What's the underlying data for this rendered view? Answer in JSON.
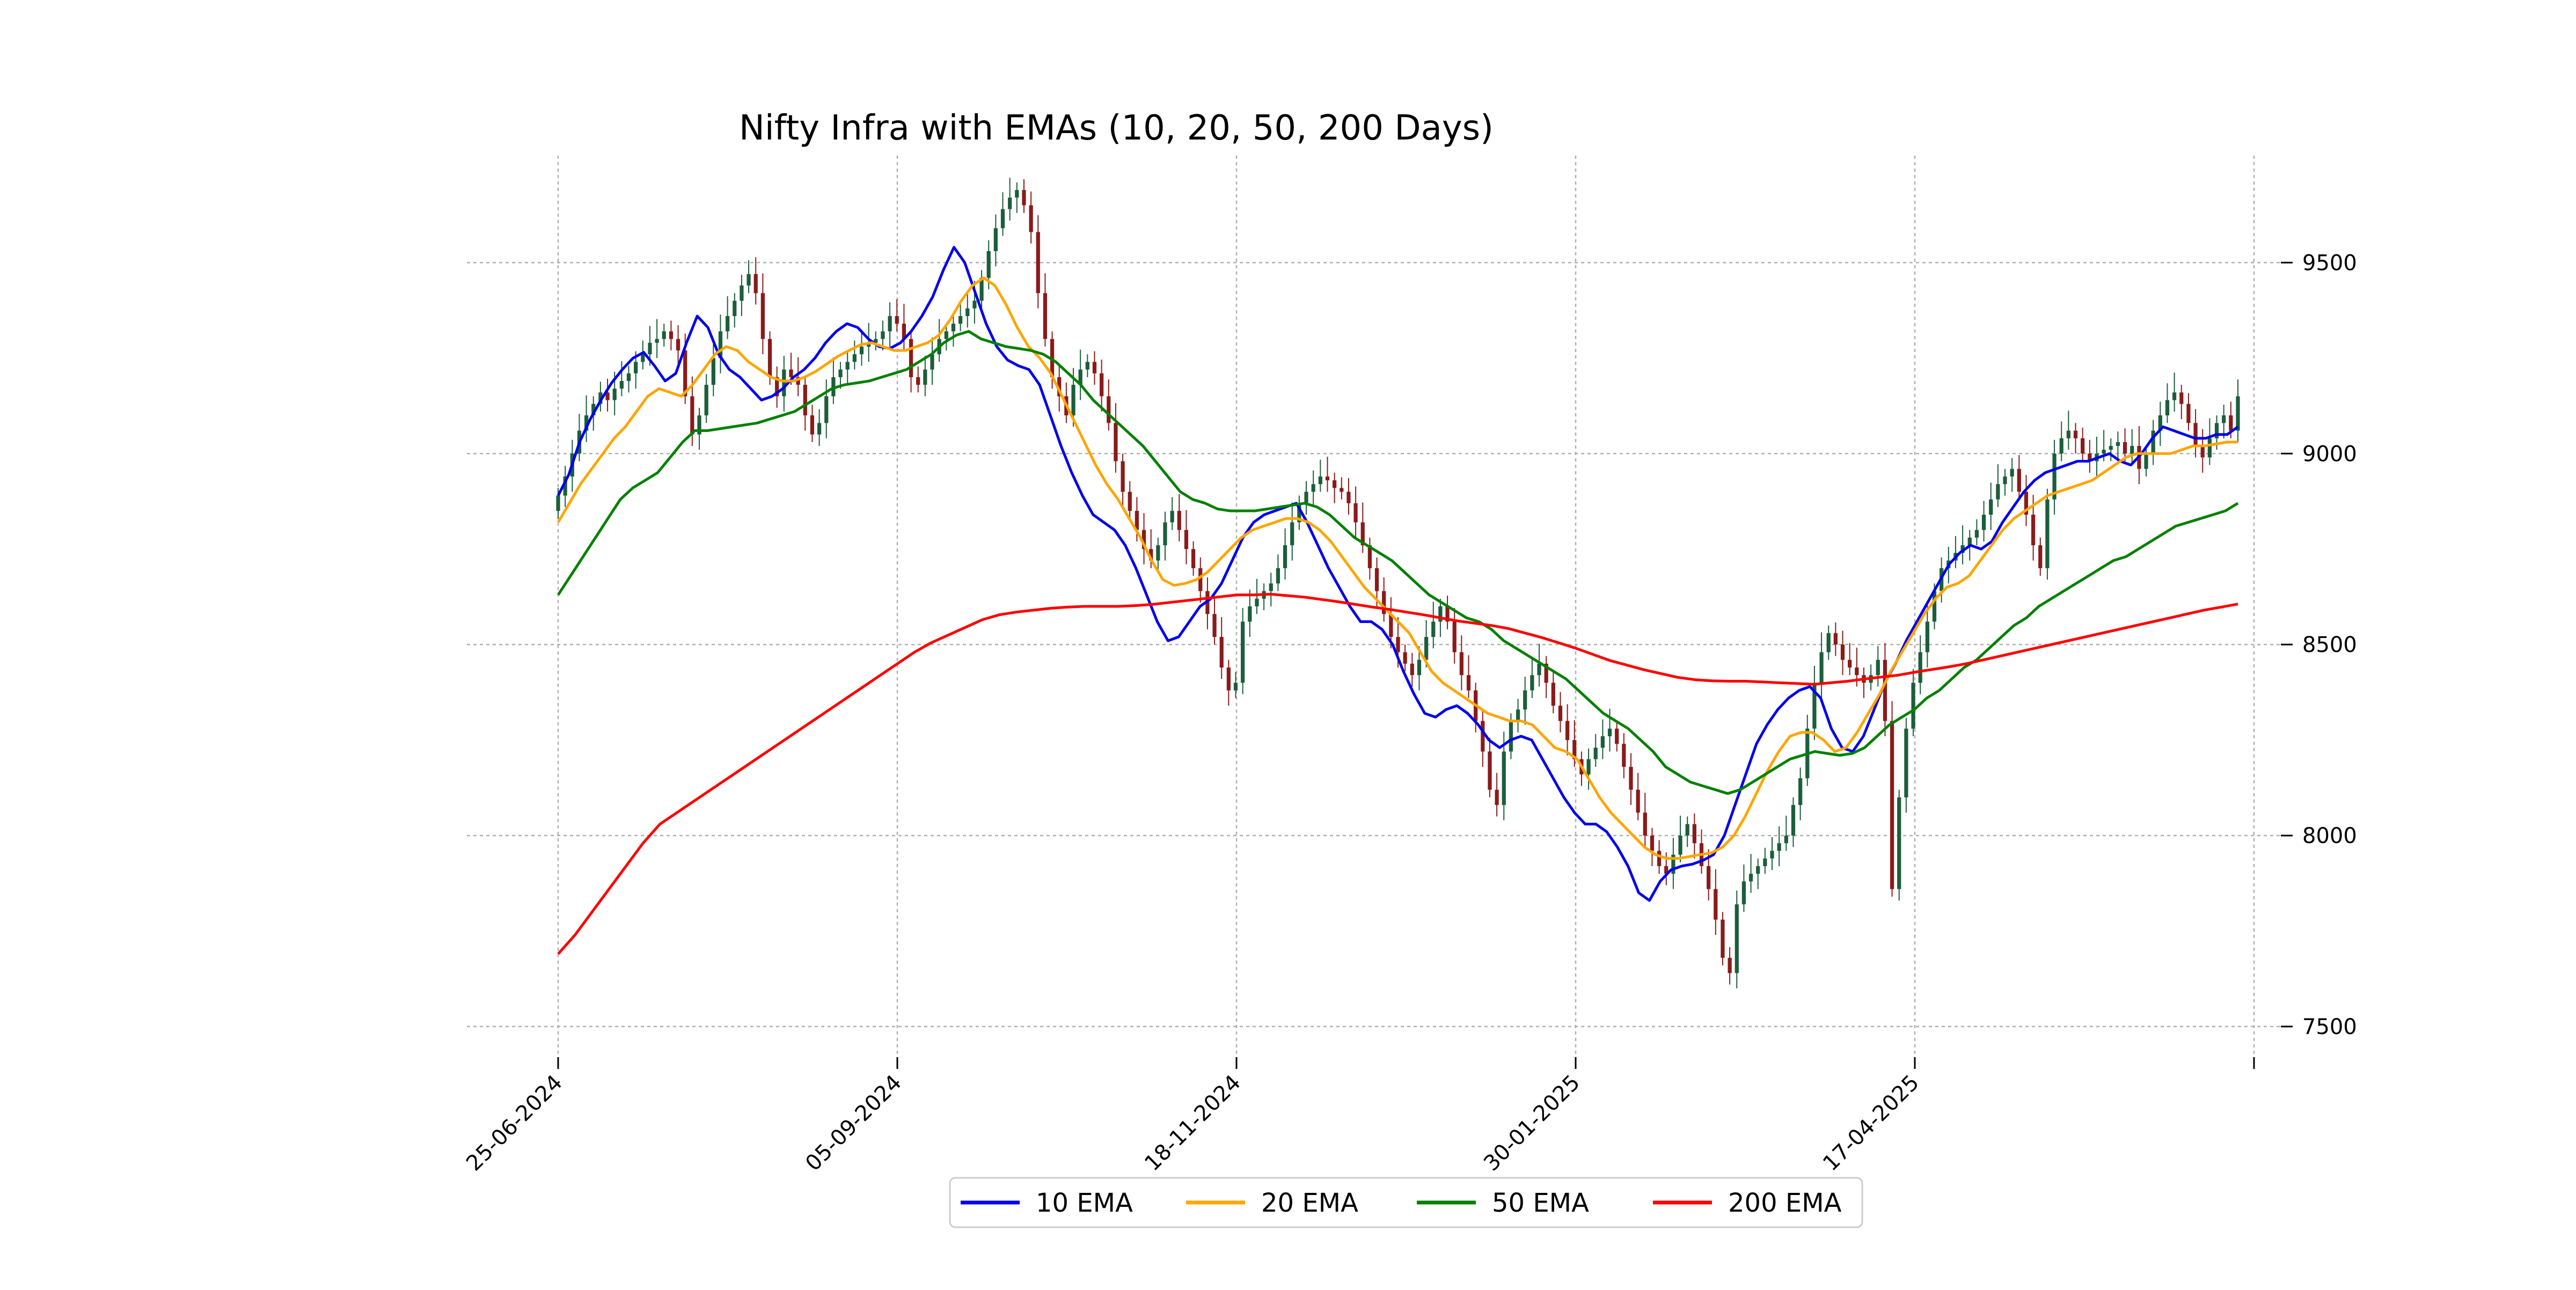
{
  "chart_data": {
    "type": "candlestick",
    "title": "Nifty Infra with EMAs (10, 20, 50, 200 Days)",
    "xlabel": "",
    "ylabel": "",
    "ylim": [
      7420,
      9780
    ],
    "y_ticks": [
      7500,
      8000,
      8500,
      9000,
      9500
    ],
    "x_ticks": [
      "25-06-2024",
      "05-09-2024",
      "18-11-2024",
      "30-01-2025",
      "17-04-2025",
      ""
    ],
    "grid": true,
    "legend_position": "bottom-center",
    "colors": {
      "up_candle": "#1b5e3b",
      "down_candle": "#8b1a1a",
      "grid": "#b0b0b0"
    },
    "candles_close": [
      8890,
      8940,
      9000,
      9060,
      9100,
      9130,
      9160,
      9140,
      9170,
      9190,
      9210,
      9240,
      9260,
      9290,
      9300,
      9320,
      9300,
      9270,
      9150,
      9050,
      9100,
      9180,
      9250,
      9320,
      9360,
      9400,
      9440,
      9470,
      9420,
      9300,
      9200,
      9150,
      9220,
      9200,
      9180,
      9100,
      9050,
      9080,
      9150,
      9200,
      9220,
      9240,
      9260,
      9280,
      9290,
      9300,
      9320,
      9360,
      9340,
      9300,
      9200,
      9180,
      9220,
      9260,
      9300,
      9320,
      9340,
      9360,
      9380,
      9400,
      9460,
      9530,
      9590,
      9640,
      9670,
      9690,
      9650,
      9580,
      9420,
      9300,
      9200,
      9150,
      9100,
      9180,
      9220,
      9240,
      9210,
      9150,
      9080,
      8980,
      8900,
      8850,
      8800,
      8750,
      8720,
      8760,
      8820,
      8850,
      8800,
      8750,
      8700,
      8640,
      8580,
      8520,
      8440,
      8380,
      8400,
      8560,
      8600,
      8620,
      8640,
      8660,
      8700,
      8760,
      8820,
      8870,
      8900,
      8920,
      8940,
      8930,
      8910,
      8900,
      8870,
      8820,
      8760,
      8700,
      8640,
      8580,
      8520,
      8480,
      8450,
      8420,
      8460,
      8520,
      8560,
      8600,
      8560,
      8480,
      8420,
      8380,
      8300,
      8220,
      8120,
      8080,
      8220,
      8300,
      8330,
      8380,
      8420,
      8450,
      8400,
      8340,
      8300,
      8250,
      8200,
      8160,
      8200,
      8230,
      8260,
      8280,
      8240,
      8180,
      8120,
      8060,
      8000,
      7960,
      7920,
      7900,
      7950,
      8000,
      8030,
      7980,
      7920,
      7860,
      7780,
      7680,
      7640,
      7820,
      7880,
      7900,
      7920,
      7940,
      7960,
      7980,
      8000,
      8080,
      8150,
      8280,
      8400,
      8480,
      8530,
      8500,
      8460,
      8440,
      8420,
      8400,
      8420,
      8460,
      8300,
      7860,
      8100,
      8280,
      8400,
      8480,
      8560,
      8640,
      8700,
      8720,
      8740,
      8760,
      8780,
      8800,
      8840,
      8880,
      8920,
      8940,
      8960,
      8900,
      8840,
      8760,
      8700,
      8880,
      9000,
      9040,
      9060,
      9040,
      9000,
      8980,
      9000,
      9010,
      9020,
      9030,
      9000,
      9020,
      8960,
      9000,
      9060,
      9100,
      9140,
      9160,
      9130,
      9080,
      9020,
      8990,
      9040,
      9080,
      9100,
      9060,
      9150
    ],
    "series": [
      {
        "name": "10 EMA",
        "color": "#0000ee",
        "values": [
          8890,
          8945,
          9030,
          9090,
          9140,
          9185,
          9220,
          9250,
          9265,
          9230,
          9190,
          9210,
          9290,
          9360,
          9330,
          9260,
          9220,
          9200,
          9170,
          9140,
          9150,
          9170,
          9200,
          9220,
          9250,
          9290,
          9320,
          9340,
          9330,
          9300,
          9280,
          9275,
          9290,
          9320,
          9360,
          9410,
          9480,
          9540,
          9500,
          9420,
          9340,
          9280,
          9245,
          9230,
          9220,
          9180,
          9100,
          9020,
          8950,
          8890,
          8840,
          8820,
          8800,
          8760,
          8700,
          8630,
          8560,
          8510,
          8520,
          8560,
          8600,
          8620,
          8660,
          8720,
          8780,
          8820,
          8840,
          8850,
          8860,
          8870,
          8820,
          8760,
          8700,
          8650,
          8600,
          8560,
          8560,
          8540,
          8500,
          8430,
          8370,
          8320,
          8310,
          8330,
          8340,
          8320,
          8290,
          8250,
          8230,
          8250,
          8260,
          8250,
          8200,
          8150,
          8100,
          8060,
          8030,
          8030,
          8010,
          7970,
          7920,
          7850,
          7830,
          7880,
          7910,
          7920,
          7925,
          7935,
          7950,
          8000,
          8080,
          8160,
          8240,
          8290,
          8330,
          8360,
          8380,
          8390,
          8360,
          8280,
          8230,
          8220,
          8260,
          8330,
          8400,
          8450,
          8510,
          8560,
          8610,
          8660,
          8710,
          8740,
          8760,
          8750,
          8770,
          8820,
          8860,
          8900,
          8930,
          8950,
          8960,
          8970,
          8980,
          8980,
          8990,
          9000,
          8980,
          8970,
          9000,
          9040,
          9070,
          9060,
          9050,
          9040,
          9040,
          9050,
          9050,
          9070
        ]
      },
      {
        "name": "20 EMA",
        "color": "#ffa500",
        "values": [
          8820,
          8870,
          8920,
          8960,
          9000,
          9040,
          9070,
          9110,
          9150,
          9170,
          9160,
          9150,
          9180,
          9220,
          9260,
          9280,
          9270,
          9240,
          9220,
          9200,
          9190,
          9190,
          9200,
          9215,
          9235,
          9255,
          9270,
          9285,
          9290,
          9280,
          9270,
          9270,
          9280,
          9290,
          9310,
          9350,
          9400,
          9440,
          9460,
          9440,
          9390,
          9330,
          9280,
          9250,
          9210,
          9150,
          9090,
          9030,
          8970,
          8920,
          8880,
          8830,
          8780,
          8720,
          8670,
          8655,
          8660,
          8670,
          8690,
          8720,
          8750,
          8780,
          8800,
          8810,
          8820,
          8830,
          8830,
          8820,
          8800,
          8770,
          8730,
          8690,
          8650,
          8620,
          8590,
          8560,
          8530,
          8480,
          8430,
          8400,
          8380,
          8360,
          8340,
          8320,
          8310,
          8300,
          8300,
          8290,
          8260,
          8230,
          8220,
          8200,
          8150,
          8100,
          8060,
          8030,
          8000,
          7970,
          7950,
          7940,
          7940,
          7945,
          7950,
          7955,
          7970,
          8000,
          8050,
          8110,
          8170,
          8220,
          8260,
          8270,
          8270,
          8250,
          8220,
          8230,
          8270,
          8320,
          8370,
          8430,
          8480,
          8530,
          8580,
          8620,
          8650,
          8660,
          8680,
          8720,
          8760,
          8800,
          8830,
          8850,
          8870,
          8890,
          8900,
          8910,
          8920,
          8930,
          8950,
          8970,
          8990,
          9000,
          9000,
          9000,
          9000,
          9010,
          9020,
          9020,
          9025,
          9030,
          9030
        ]
      },
      {
        "name": "50 EMA",
        "color": "#008000",
        "values": [
          8630,
          8680,
          8730,
          8780,
          8830,
          8880,
          8910,
          8930,
          8950,
          8990,
          9030,
          9060,
          9060,
          9065,
          9070,
          9075,
          9080,
          9090,
          9100,
          9110,
          9130,
          9150,
          9170,
          9180,
          9185,
          9190,
          9200,
          9210,
          9220,
          9240,
          9260,
          9290,
          9310,
          9320,
          9300,
          9290,
          9280,
          9275,
          9270,
          9260,
          9240,
          9210,
          9180,
          9140,
          9110,
          9080,
          9050,
          9020,
          8980,
          8940,
          8900,
          8880,
          8870,
          8855,
          8850,
          8850,
          8850,
          8855,
          8860,
          8865,
          8870,
          8860,
          8840,
          8810,
          8780,
          8760,
          8740,
          8720,
          8690,
          8660,
          8630,
          8610,
          8590,
          8570,
          8560,
          8540,
          8510,
          8490,
          8470,
          8450,
          8430,
          8410,
          8380,
          8350,
          8320,
          8300,
          8280,
          8250,
          8220,
          8180,
          8160,
          8140,
          8130,
          8120,
          8110,
          8120,
          8140,
          8160,
          8180,
          8200,
          8210,
          8220,
          8215,
          8210,
          8215,
          8230,
          8260,
          8290,
          8310,
          8330,
          8360,
          8380,
          8410,
          8440,
          8460,
          8490,
          8520,
          8550,
          8570,
          8600,
          8620,
          8640,
          8660,
          8680,
          8700,
          8720,
          8730,
          8750,
          8770,
          8790,
          8810,
          8820,
          8830,
          8840,
          8850,
          8870
        ]
      },
      {
        "name": "200 EMA",
        "color": "#ff0000",
        "values": [
          7690,
          7740,
          7800,
          7860,
          7920,
          7980,
          8030,
          8060,
          8090,
          8120,
          8150,
          8180,
          8210,
          8240,
          8270,
          8300,
          8330,
          8360,
          8390,
          8420,
          8450,
          8480,
          8505,
          8525,
          8545,
          8565,
          8578,
          8585,
          8590,
          8595,
          8598,
          8600,
          8600,
          8600,
          8602,
          8605,
          8610,
          8615,
          8620,
          8625,
          8630,
          8630,
          8632,
          8628,
          8624,
          8618,
          8612,
          8605,
          8598,
          8592,
          8585,
          8578,
          8570,
          8562,
          8556,
          8550,
          8542,
          8530,
          8518,
          8504,
          8490,
          8474,
          8458,
          8446,
          8434,
          8424,
          8414,
          8408,
          8405,
          8404,
          8404,
          8402,
          8400,
          8398,
          8396,
          8400,
          8404,
          8410,
          8415,
          8420,
          8428,
          8435,
          8442,
          8450,
          8460,
          8470,
          8480,
          8490,
          8500,
          8510,
          8520,
          8530,
          8540,
          8550,
          8560,
          8570,
          8580,
          8590,
          8598,
          8606
        ]
      }
    ],
    "legend": [
      {
        "label": "10 EMA",
        "color": "#0000ee"
      },
      {
        "label": "20 EMA",
        "color": "#ffa500"
      },
      {
        "label": "50 EMA",
        "color": "#008000"
      },
      {
        "label": "200 EMA",
        "color": "#ff0000"
      }
    ]
  }
}
